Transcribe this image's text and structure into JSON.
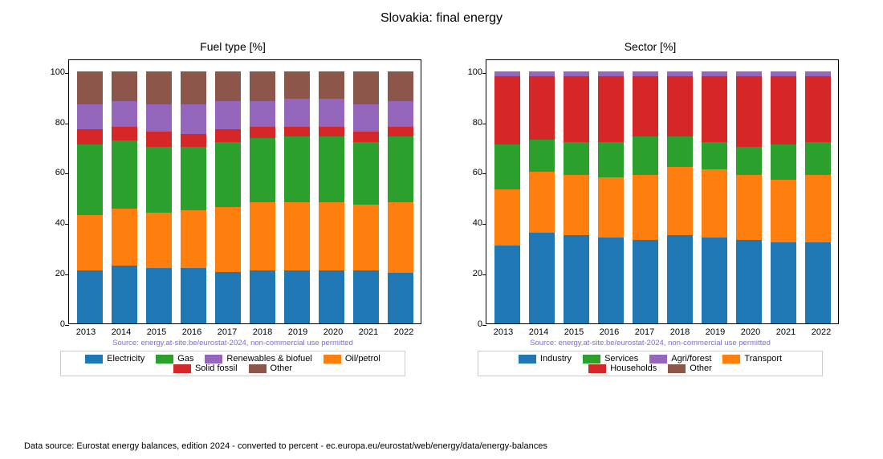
{
  "title": "Slovakia: final energy",
  "footer": "Data source: Eurostat energy balances, edition 2024 - converted to percent - ec.europa.eu/eurostat/web/energy/data/energy-balances",
  "source_text": "Source: energy.at-site.be/eurostat-2024, non-commercial use permitted",
  "colors": {
    "c0": "#1f77b4",
    "c1": "#ff7f0e",
    "c2": "#2ca02c",
    "c3": "#d62728",
    "c4": "#9467bd",
    "c5": "#8c564b"
  },
  "years": [
    "2013",
    "2014",
    "2015",
    "2016",
    "2017",
    "2018",
    "2019",
    "2020",
    "2021",
    "2022"
  ],
  "ylim": [
    0,
    105
  ],
  "yticks": [
    0,
    20,
    40,
    60,
    80,
    100
  ],
  "left": {
    "title": "Fuel type [%]",
    "legend": [
      {
        "label": "Electricity",
        "color": "c0"
      },
      {
        "label": "Gas",
        "color": "c2"
      },
      {
        "label": "Renewables & biofuel",
        "color": "c4"
      },
      {
        "label": "Oil/petrol",
        "color": "c1"
      },
      {
        "label": "Solid fossil",
        "color": "c3"
      },
      {
        "label": "Other",
        "color": "c5"
      }
    ],
    "series_order": [
      "c0",
      "c1",
      "c2",
      "c3",
      "c4",
      "c5"
    ],
    "data": [
      {
        "c0": 21,
        "c1": 22,
        "c2": 28,
        "c3": 6,
        "c4": 10,
        "c5": 13
      },
      {
        "c0": 23,
        "c1": 22.5,
        "c2": 27,
        "c3": 5.5,
        "c4": 10,
        "c5": 12
      },
      {
        "c0": 22,
        "c1": 22,
        "c2": 26,
        "c3": 6,
        "c4": 11,
        "c5": 13
      },
      {
        "c0": 22,
        "c1": 23,
        "c2": 25,
        "c3": 5,
        "c4": 12,
        "c5": 13
      },
      {
        "c0": 20.5,
        "c1": 25.5,
        "c2": 26,
        "c3": 5,
        "c4": 11,
        "c5": 12
      },
      {
        "c0": 21,
        "c1": 27,
        "c2": 25.5,
        "c3": 4.5,
        "c4": 10,
        "c5": 12
      },
      {
        "c0": 21,
        "c1": 27,
        "c2": 26,
        "c3": 4,
        "c4": 11,
        "c5": 11
      },
      {
        "c0": 21,
        "c1": 27,
        "c2": 26,
        "c3": 4,
        "c4": 11,
        "c5": 11
      },
      {
        "c0": 21,
        "c1": 26,
        "c2": 25,
        "c3": 4,
        "c4": 11,
        "c5": 13
      },
      {
        "c0": 20,
        "c1": 28,
        "c2": 26,
        "c3": 4,
        "c4": 10,
        "c5": 12
      }
    ]
  },
  "right": {
    "title": "Sector [%]",
    "legend": [
      {
        "label": "Industry",
        "color": "c0"
      },
      {
        "label": "Services",
        "color": "c2"
      },
      {
        "label": "Agri/forest",
        "color": "c4"
      },
      {
        "label": "Transport",
        "color": "c1"
      },
      {
        "label": "Households",
        "color": "c3"
      },
      {
        "label": "Other",
        "color": "c5"
      }
    ],
    "series_order": [
      "c0",
      "c1",
      "c2",
      "c3",
      "c4",
      "c5"
    ],
    "data": [
      {
        "c0": 31,
        "c1": 22,
        "c2": 18,
        "c3": 27,
        "c4": 2,
        "c5": 0
      },
      {
        "c0": 36,
        "c1": 24,
        "c2": 13,
        "c3": 25,
        "c4": 2,
        "c5": 0
      },
      {
        "c0": 35,
        "c1": 24,
        "c2": 13,
        "c3": 26,
        "c4": 2,
        "c5": 0
      },
      {
        "c0": 34,
        "c1": 24,
        "c2": 14,
        "c3": 26,
        "c4": 2,
        "c5": 0
      },
      {
        "c0": 33,
        "c1": 26,
        "c2": 15,
        "c3": 24,
        "c4": 2,
        "c5": 0
      },
      {
        "c0": 35,
        "c1": 27,
        "c2": 12,
        "c3": 24,
        "c4": 2,
        "c5": 0
      },
      {
        "c0": 34,
        "c1": 27,
        "c2": 11,
        "c3": 26,
        "c4": 2,
        "c5": 0
      },
      {
        "c0": 33,
        "c1": 26,
        "c2": 11,
        "c3": 28,
        "c4": 2,
        "c5": 0
      },
      {
        "c0": 32,
        "c1": 25,
        "c2": 14,
        "c3": 27,
        "c4": 2,
        "c5": 0
      },
      {
        "c0": 32,
        "c1": 27,
        "c2": 13,
        "c3": 26,
        "c4": 2,
        "c5": 0
      }
    ]
  }
}
